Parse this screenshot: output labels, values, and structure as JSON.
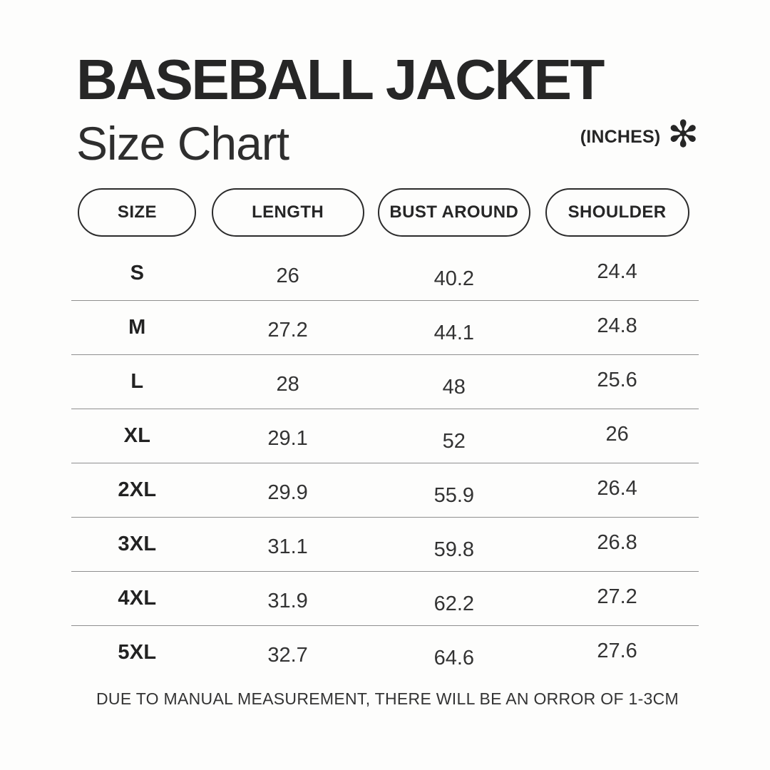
{
  "header": {
    "title": "BASEBALL JACKET",
    "subtitle": "Size Chart",
    "unit_label": "(INCHES)",
    "asterisk_glyph": "✻"
  },
  "table": {
    "columns": [
      "SIZE",
      "LENGTH",
      "BUST AROUND",
      "SHOULDER"
    ],
    "rows": [
      {
        "size": "S",
        "length": "26",
        "bust": "40.2",
        "shoulder": "24.4"
      },
      {
        "size": "M",
        "length": "27.2",
        "bust": "44.1",
        "shoulder": "24.8"
      },
      {
        "size": "L",
        "length": "28",
        "bust": "48",
        "shoulder": "25.6"
      },
      {
        "size": "XL",
        "length": "29.1",
        "bust": "52",
        "shoulder": "26"
      },
      {
        "size": "2XL",
        "length": "29.9",
        "bust": "55.9",
        "shoulder": "26.4"
      },
      {
        "size": "3XL",
        "length": "31.1",
        "bust": "59.8",
        "shoulder": "26.8"
      },
      {
        "size": "4XL",
        "length": "31.9",
        "bust": "62.2",
        "shoulder": "27.2"
      },
      {
        "size": "5XL",
        "length": "32.7",
        "bust": "64.6",
        "shoulder": "27.6"
      }
    ]
  },
  "footer": {
    "note": "DUE TO MANUAL MEASUREMENT, THERE WILL BE AN ORROR OF 1-3CM"
  },
  "colors": {
    "background": "#fdfdfc",
    "text": "#2b2b2b",
    "divider": "#8f8f8f",
    "pill_border": "#2b2b2b"
  },
  "chart_data": {
    "type": "table",
    "title": "BASEBALL JACKET Size Chart",
    "unit": "INCHES",
    "columns": [
      "SIZE",
      "LENGTH",
      "BUST AROUND",
      "SHOULDER"
    ],
    "rows": [
      [
        "S",
        26,
        40.2,
        24.4
      ],
      [
        "M",
        27.2,
        44.1,
        24.8
      ],
      [
        "L",
        28,
        48,
        25.6
      ],
      [
        "XL",
        29.1,
        52,
        26
      ],
      [
        "2XL",
        29.9,
        55.9,
        26.4
      ],
      [
        "3XL",
        31.1,
        59.8,
        26.8
      ],
      [
        "4XL",
        31.9,
        62.2,
        27.2
      ],
      [
        "5XL",
        32.7,
        64.6,
        27.6
      ]
    ],
    "note": "DUE TO MANUAL MEASUREMENT, THERE WILL BE AN ORROR OF 1-3CM"
  }
}
